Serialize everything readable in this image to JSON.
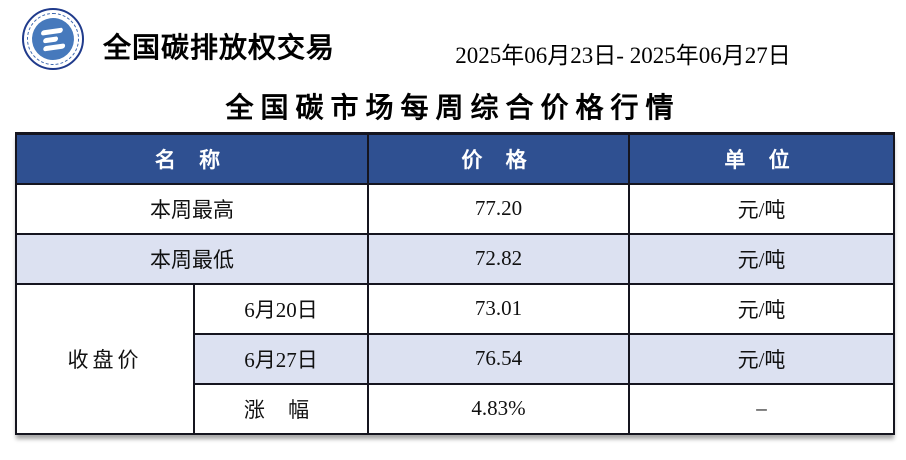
{
  "brand": {
    "name": "全国碳排放权交易",
    "logo_icon": "cea-emblem-icon"
  },
  "header": {
    "date_range": "2025年06月23日- 2025年06月27日",
    "title": "全国碳市场每周综合价格行情"
  },
  "table": {
    "columns": {
      "name": "名 称",
      "price": "价 格",
      "unit": "单 位"
    },
    "week_high": {
      "name": "本周最高",
      "price": "77.20",
      "unit": "元/吨"
    },
    "week_low": {
      "name": "本周最低",
      "price": "72.82",
      "unit": "元/吨"
    },
    "closing": {
      "label": "收盘价",
      "rows": [
        {
          "name": "6月20日",
          "price": "73.01",
          "unit": "元/吨"
        },
        {
          "name": "6月27日",
          "price": "76.54",
          "unit": "元/吨"
        },
        {
          "name": "涨 幅",
          "price": "4.83%",
          "unit": "–"
        }
      ]
    }
  },
  "colors": {
    "header_bg": "#2f5091",
    "row_alt_bg": "#dce1f1",
    "border": "#15151f",
    "logo_ring": "#203b8c",
    "logo_inner": "#4679bc"
  }
}
